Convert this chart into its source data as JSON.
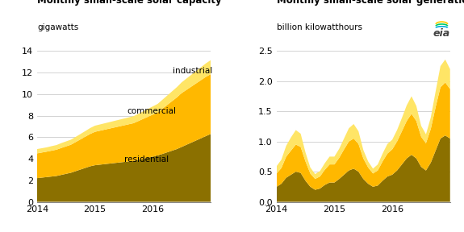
{
  "title1": "Monthly small-scale solar capacity",
  "unit1": "gigawatts",
  "title2": "Monthly small-scale solar generation",
  "unit2": "billion kilowatthours",
  "colors": {
    "residential": "#8B7000",
    "commercial": "#FFB800",
    "industrial": "#FFE566"
  },
  "ylim1": [
    0,
    14
  ],
  "yticks1": [
    0,
    2,
    4,
    6,
    8,
    10,
    12,
    14
  ],
  "ylim2": [
    0,
    2.5
  ],
  "yticks2": [
    0.0,
    0.5,
    1.0,
    1.5,
    2.0,
    2.5
  ],
  "cap_residential": [
    2.2,
    2.25,
    2.3,
    2.35,
    2.4,
    2.5,
    2.6,
    2.7,
    2.85,
    3.0,
    3.15,
    3.3,
    3.4,
    3.45,
    3.5,
    3.55,
    3.6,
    3.65,
    3.7,
    3.75,
    3.8,
    3.9,
    4.0,
    4.1,
    4.2,
    4.3,
    4.45,
    4.6,
    4.75,
    4.9,
    5.1,
    5.3,
    5.5,
    5.7,
    5.9,
    6.1,
    6.3
  ],
  "cap_commercial": [
    2.3,
    2.33,
    2.36,
    2.4,
    2.44,
    2.5,
    2.55,
    2.6,
    2.7,
    2.8,
    2.9,
    3.0,
    3.1,
    3.15,
    3.2,
    3.25,
    3.3,
    3.35,
    3.4,
    3.45,
    3.5,
    3.6,
    3.7,
    3.8,
    3.9,
    4.0,
    4.2,
    4.4,
    4.6,
    4.8,
    5.0,
    5.1,
    5.2,
    5.3,
    5.4,
    5.5,
    5.55
  ],
  "cap_industrial": [
    0.4,
    0.4,
    0.4,
    0.42,
    0.43,
    0.45,
    0.46,
    0.47,
    0.48,
    0.5,
    0.52,
    0.55,
    0.57,
    0.58,
    0.59,
    0.6,
    0.61,
    0.62,
    0.63,
    0.64,
    0.65,
    0.67,
    0.7,
    0.73,
    0.76,
    0.79,
    0.83,
    0.87,
    0.91,
    0.95,
    1.0,
    1.05,
    1.1,
    1.15,
    1.2,
    1.25,
    1.3
  ],
  "gen_residential": [
    0.25,
    0.3,
    0.4,
    0.45,
    0.5,
    0.48,
    0.35,
    0.25,
    0.2,
    0.22,
    0.28,
    0.32,
    0.32,
    0.38,
    0.45,
    0.52,
    0.55,
    0.5,
    0.38,
    0.3,
    0.25,
    0.27,
    0.35,
    0.42,
    0.45,
    0.52,
    0.62,
    0.72,
    0.78,
    0.72,
    0.58,
    0.52,
    0.65,
    0.85,
    1.05,
    1.1,
    1.05
  ],
  "gen_commercial": [
    0.22,
    0.26,
    0.35,
    0.4,
    0.45,
    0.43,
    0.32,
    0.22,
    0.18,
    0.2,
    0.25,
    0.3,
    0.3,
    0.35,
    0.42,
    0.48,
    0.5,
    0.46,
    0.34,
    0.27,
    0.22,
    0.25,
    0.32,
    0.38,
    0.42,
    0.48,
    0.55,
    0.62,
    0.68,
    0.62,
    0.5,
    0.45,
    0.56,
    0.72,
    0.85,
    0.88,
    0.82
  ],
  "gen_industrial": [
    0.12,
    0.14,
    0.18,
    0.22,
    0.24,
    0.22,
    0.15,
    0.1,
    0.08,
    0.09,
    0.11,
    0.13,
    0.13,
    0.15,
    0.18,
    0.22,
    0.24,
    0.21,
    0.14,
    0.1,
    0.08,
    0.1,
    0.13,
    0.16,
    0.16,
    0.19,
    0.22,
    0.26,
    0.29,
    0.25,
    0.18,
    0.15,
    0.19,
    0.26,
    0.35,
    0.38,
    0.33
  ],
  "n_months": 37,
  "start_year": 2014,
  "label_residential": "residential",
  "label_commercial": "commercial",
  "label_industrial": "industrial",
  "bg_color": "#ffffff",
  "grid_color": "#cccccc",
  "title_fontsize": 8.5,
  "unit_fontsize": 7.5,
  "tick_fontsize": 8,
  "label_fontsize": 7.5
}
